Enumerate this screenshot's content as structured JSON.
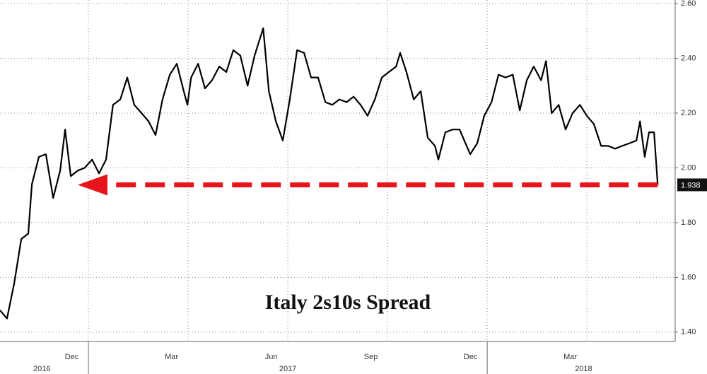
{
  "chart_data": {
    "type": "line",
    "title": "Italy 2s10s Spread",
    "x": [
      1.34,
      1.55,
      1.77,
      1.98,
      2.19,
      2.3,
      2.51,
      2.72,
      2.94,
      3.15,
      3.3,
      3.47,
      3.68,
      3.89,
      4.11,
      4.32,
      4.53,
      4.74,
      4.96,
      5.17,
      5.38,
      5.6,
      5.81,
      6.02,
      6.23,
      6.45,
      6.66,
      6.87,
      6.98,
      7.09,
      7.3,
      7.51,
      7.72,
      7.94,
      8.15,
      8.36,
      8.57,
      8.79,
      9.0,
      9.26,
      9.43,
      9.64,
      9.85,
      10.06,
      10.28,
      10.49,
      10.7,
      10.91,
      11.13,
      11.34,
      11.55,
      11.77,
      11.98,
      12.19,
      12.4,
      12.62,
      12.83,
      13.04,
      13.26,
      13.38,
      13.57,
      13.79,
      14.0,
      14.21,
      14.43,
      14.53,
      14.74,
      14.96,
      15.17,
      15.38,
      15.49,
      15.7,
      15.91,
      16.13,
      16.34,
      16.55,
      16.77,
      16.98,
      17.19,
      17.4,
      17.62,
      17.77,
      17.94,
      18.15,
      18.36,
      18.57,
      18.79,
      19.0,
      19.21,
      19.43,
      19.64,
      19.85,
      20.06,
      20.28,
      20.49,
      20.6,
      20.74,
      20.87,
      21.02,
      21.13
    ],
    "series": [
      {
        "color": "#000000",
        "values": [
          1.48,
          1.45,
          1.58,
          1.74,
          1.76,
          1.94,
          2.04,
          2.05,
          1.89,
          1.99,
          2.14,
          1.97,
          1.99,
          2.0,
          2.03,
          1.98,
          2.03,
          2.23,
          2.25,
          2.33,
          2.23,
          2.2,
          2.17,
          2.12,
          2.25,
          2.34,
          2.38,
          2.28,
          2.23,
          2.33,
          2.38,
          2.29,
          2.32,
          2.37,
          2.35,
          2.43,
          2.41,
          2.3,
          2.41,
          2.51,
          2.28,
          2.17,
          2.1,
          2.25,
          2.43,
          2.42,
          2.33,
          2.33,
          2.24,
          2.23,
          2.25,
          2.24,
          2.26,
          2.23,
          2.19,
          2.25,
          2.33,
          2.35,
          2.37,
          2.42,
          2.35,
          2.25,
          2.28,
          2.11,
          2.08,
          2.03,
          2.13,
          2.14,
          2.14,
          2.08,
          2.05,
          2.09,
          2.19,
          2.24,
          2.34,
          2.33,
          2.34,
          2.21,
          2.32,
          2.37,
          2.32,
          2.39,
          2.2,
          2.23,
          2.14,
          2.2,
          2.23,
          2.19,
          2.16,
          2.08,
          2.08,
          2.07,
          2.08,
          2.09,
          2.1,
          2.17,
          2.04,
          2.13,
          2.13,
          1.938
        ]
      }
    ],
    "arrow": {
      "color": "#e8141c",
      "to_x": 3.68
    },
    "xlim": [
      1.34,
      21.55
    ],
    "xticks": [
      {
        "value": 3.5,
        "label": "Dec"
      },
      {
        "value": 6.5,
        "label": "Mar"
      },
      {
        "value": 9.5,
        "label": "Jun"
      },
      {
        "value": 12.5,
        "label": "Sep"
      },
      {
        "value": 15.5,
        "label": "Dec"
      },
      {
        "value": 18.5,
        "label": "Mar"
      }
    ],
    "xgrid": [
      4,
      7,
      10,
      13,
      16,
      19
    ],
    "years": [
      {
        "value": 2.6,
        "label": "2016"
      },
      {
        "value": 10.0,
        "label": "2017"
      },
      {
        "value": 18.9,
        "label": "2018"
      }
    ],
    "year_breaks": [
      4,
      16
    ],
    "ylim": [
      1.366,
      2.613
    ],
    "yticks": [
      {
        "value": 1.4,
        "label": "1.40"
      },
      {
        "value": 1.6,
        "label": "1.60"
      },
      {
        "value": 1.8,
        "label": "1.80"
      },
      {
        "value": 2.0,
        "label": "2.00"
      },
      {
        "value": 2.2,
        "label": "2.20"
      },
      {
        "value": 2.4,
        "label": "2.40"
      },
      {
        "value": 2.6,
        "label": "2.60"
      }
    ],
    "grid": true
  }
}
